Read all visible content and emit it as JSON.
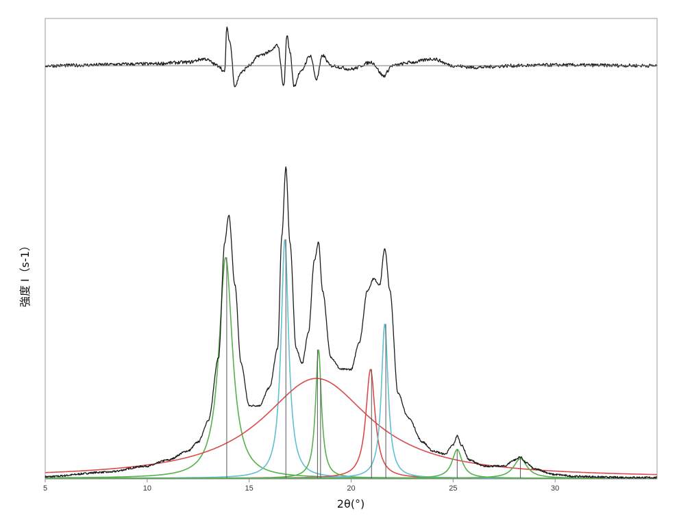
{
  "chart_data": {
    "type": "line",
    "title": "",
    "xlabel": "2θ(°)",
    "ylabel": "強度 I（s-1）",
    "xlim": [
      5,
      35
    ],
    "x_ticks": [
      5,
      10,
      15,
      20,
      25,
      30
    ],
    "y_ticks_shown": false,
    "grid": false,
    "legend": "none",
    "peak_positions": [
      13.9,
      16.8,
      18.35,
      18.5,
      21.0,
      21.7,
      25.2,
      28.3
    ],
    "components": [
      {
        "color": "#55b04b",
        "shape": "lorentzian",
        "center": 13.85,
        "fwhm": 0.8,
        "height": 0.73
      },
      {
        "color": "#5fbfcc",
        "shape": "lorentzian",
        "center": 16.75,
        "fwhm": 0.45,
        "height": 0.79
      },
      {
        "color": "#55b04b",
        "shape": "lorentzian",
        "center": 18.4,
        "fwhm": 0.35,
        "height": 0.425
      },
      {
        "color": "#d94a4a",
        "shape": "lorentzian",
        "center": 18.3,
        "fwhm": 6.5,
        "height": 0.33
      },
      {
        "color": "#d94a4a",
        "shape": "lorentzian",
        "center": 20.95,
        "fwhm": 0.55,
        "height": 0.36
      },
      {
        "color": "#5fbfcc",
        "shape": "lorentzian",
        "center": 21.65,
        "fwhm": 0.4,
        "height": 0.51
      },
      {
        "color": "#55b04b",
        "shape": "lorentzian",
        "center": 25.2,
        "fwhm": 0.6,
        "height": 0.095
      },
      {
        "color": "#55b04b",
        "shape": "lorentzian",
        "center": 28.3,
        "fwhm": 0.8,
        "height": 0.065
      }
    ],
    "series": [
      {
        "role": "observed",
        "color": "#1a1a1a",
        "x": [
          5,
          8,
          10,
          11,
          12,
          12.5,
          13,
          13.5,
          13.8,
          14,
          14.3,
          14.6,
          15,
          15.5,
          16,
          16.4,
          16.6,
          16.8,
          17,
          17.3,
          17.6,
          17.9,
          18.2,
          18.4,
          18.6,
          19,
          19.5,
          20,
          20.4,
          20.8,
          21.1,
          21.4,
          21.65,
          21.9,
          22.3,
          22.8,
          23.5,
          24,
          24.6,
          25,
          25.2,
          25.4,
          25.8,
          26.5,
          27.5,
          28,
          28.3,
          28.6,
          29,
          30,
          31,
          33,
          35
        ],
        "y": [
          0.005,
          0.02,
          0.04,
          0.06,
          0.09,
          0.12,
          0.19,
          0.4,
          0.78,
          0.87,
          0.64,
          0.38,
          0.24,
          0.24,
          0.3,
          0.43,
          0.8,
          1.03,
          0.78,
          0.43,
          0.38,
          0.48,
          0.72,
          0.78,
          0.62,
          0.4,
          0.36,
          0.36,
          0.45,
          0.62,
          0.66,
          0.64,
          0.76,
          0.62,
          0.28,
          0.2,
          0.12,
          0.09,
          0.08,
          0.11,
          0.14,
          0.11,
          0.06,
          0.04,
          0.04,
          0.06,
          0.07,
          0.05,
          0.03,
          0.012,
          0.006,
          0.003,
          0.002
        ]
      },
      {
        "role": "residual",
        "color": "#1a1a1a",
        "x": [
          5,
          10,
          12,
          12.8,
          13.5,
          13.8,
          13.9,
          14.05,
          14.3,
          14.6,
          15,
          15.5,
          16.0,
          16.4,
          16.7,
          16.85,
          17.0,
          17.2,
          17.5,
          18.0,
          18.3,
          18.6,
          19.0,
          20.0,
          21.0,
          21.6,
          22.0,
          23.0,
          24.0,
          25.0,
          26.0,
          28.0,
          30.0,
          35.0
        ],
        "y": [
          0,
          0.005,
          0.01,
          0.02,
          0.0,
          -0.02,
          0.11,
          0.07,
          -0.06,
          -0.02,
          0.0,
          0.03,
          0.04,
          0.06,
          -0.06,
          0.09,
          0.04,
          -0.06,
          -0.02,
          0.03,
          -0.04,
          0.03,
          0.0,
          -0.01,
          0.01,
          -0.03,
          0.0,
          0.01,
          0.02,
          0.0,
          -0.005,
          0.0,
          0.002,
          0.0
        ]
      }
    ]
  }
}
